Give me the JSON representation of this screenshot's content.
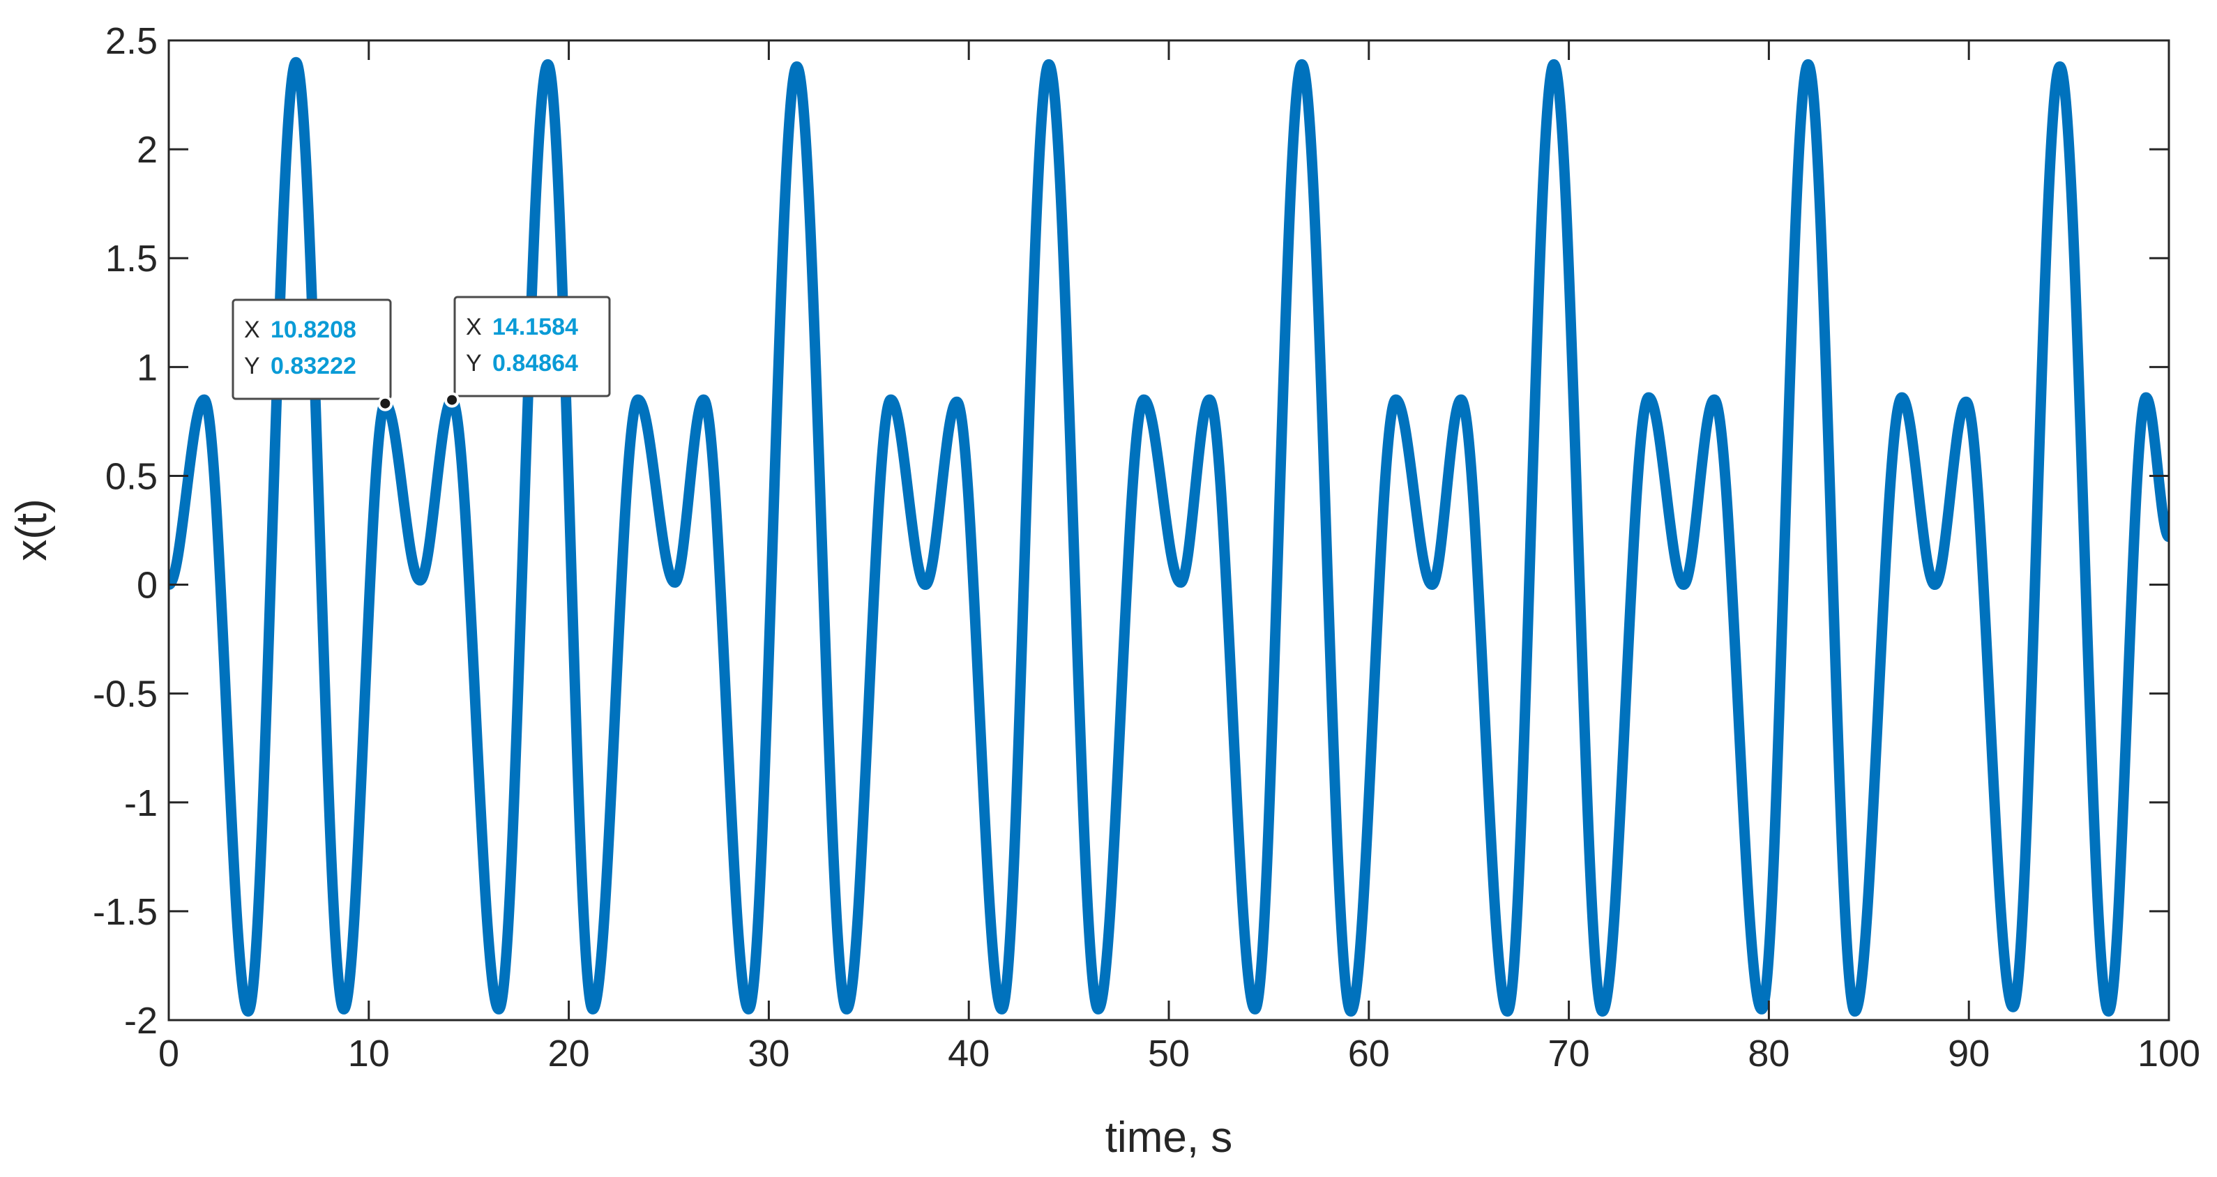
{
  "chart_data": {
    "type": "line",
    "title": "",
    "xlabel": "time, s",
    "ylabel": "x(t)",
    "xlim": [
      0,
      100
    ],
    "ylim": [
      -2,
      2.5
    ],
    "xticks": [
      0,
      10,
      20,
      30,
      40,
      50,
      60,
      70,
      80,
      90,
      100
    ],
    "yticks": [
      -2,
      -1.5,
      -1,
      -0.5,
      0,
      0.5,
      1,
      1.5,
      2,
      2.5
    ],
    "xtick_labels": [
      "0",
      "10",
      "20",
      "30",
      "40",
      "50",
      "60",
      "70",
      "80",
      "90",
      "100"
    ],
    "ytick_labels": [
      "-2",
      "-1.5",
      "-1",
      "-0.5",
      "0",
      "0.5",
      "1",
      "1.5",
      "2",
      "2.5"
    ],
    "grid": false,
    "series": [
      {
        "color": "#0072bd",
        "x": [
          0,
          1.77,
          3.97,
          6.36,
          8.75,
          10.82,
          12.56,
          14.16,
          16.5,
          18.95,
          21.2,
          23.46,
          25.3,
          26.74,
          28.99,
          31.4,
          33.89,
          36.1,
          37.83,
          39.4,
          41.65,
          44.0,
          46.47,
          48.75,
          50.59,
          52.03,
          54.31,
          56.65,
          59.1,
          61.35,
          63.16,
          64.61,
          66.93,
          69.25,
          71.68,
          73.99,
          75.74,
          77.27,
          79.64,
          81.96,
          84.3,
          86.65,
          88.3,
          89.86,
          92.21,
          94.55,
          96.98,
          98.86,
          100
        ],
        "y": [
          0,
          0.85,
          -1.96,
          2.4,
          -1.95,
          0.83222,
          0.02,
          0.84864,
          -1.95,
          2.39,
          -1.95,
          0.85,
          0.01,
          0.85,
          -1.95,
          2.38,
          -1.95,
          0.85,
          0.0,
          0.84,
          -1.95,
          2.39,
          -1.95,
          0.85,
          0.01,
          0.85,
          -1.95,
          2.39,
          -1.96,
          0.85,
          0.0,
          0.85,
          -1.96,
          2.39,
          -1.96,
          0.86,
          0.0,
          0.85,
          -1.95,
          2.39,
          -1.96,
          0.86,
          0.0,
          0.84,
          -1.94,
          2.38,
          -1.96,
          0.86,
          0.22
        ]
      }
    ],
    "annotations": [
      {
        "x": 10.8208,
        "y": 0.83222,
        "x_label": "X",
        "x_value": "10.8208",
        "y_label": "Y",
        "y_value": "0.83222"
      },
      {
        "x": 14.1584,
        "y": 0.84864,
        "x_label": "X",
        "x_value": "14.1584",
        "y_label": "Y",
        "y_value": "0.84864"
      }
    ]
  }
}
